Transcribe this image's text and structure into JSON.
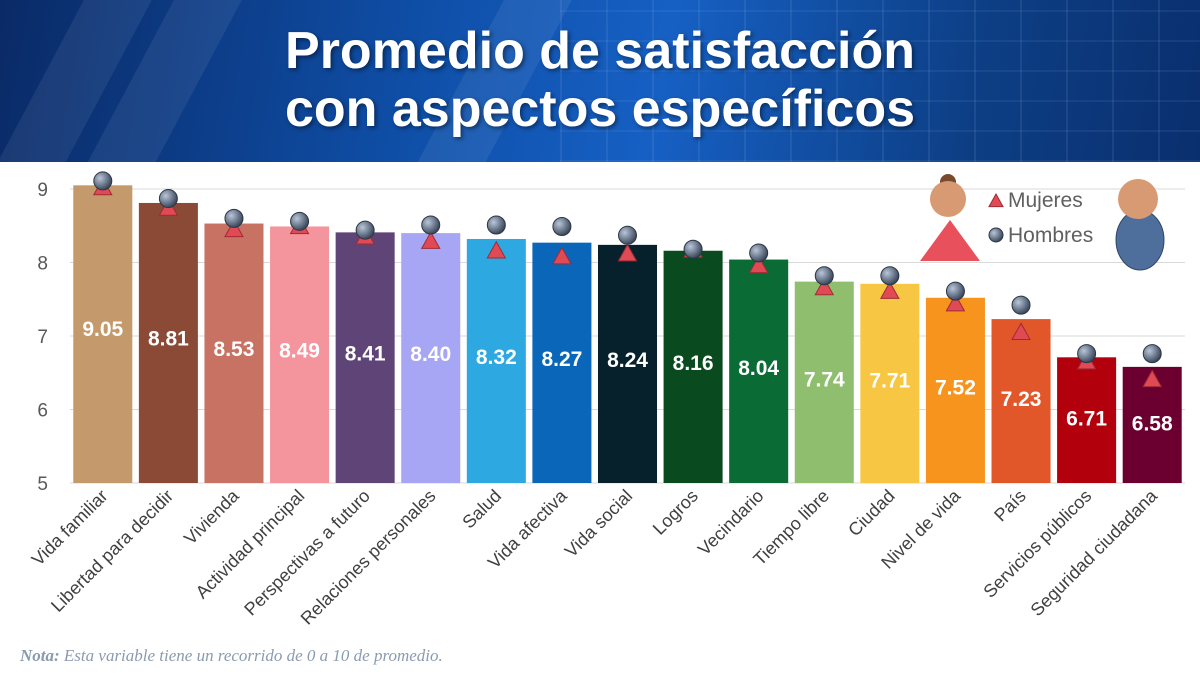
{
  "title_line1": "Promedio de satisfacción",
  "title_line2": "con aspectos específicos",
  "note_label": "Nota:",
  "note_text": " Esta variable tiene un recorrido de 0 a 10 de promedio.",
  "chart_data": {
    "type": "bar",
    "ylim": [
      5,
      9
    ],
    "yticks": [
      5,
      6,
      7,
      8,
      9
    ],
    "grid": true,
    "legend_position": "top-right",
    "categories": [
      "Vida familiar",
      "Libertad para decidir",
      "Vivienda",
      "Actividad principal",
      "Perspectivas a futuro",
      "Relaciones personales",
      "Salud",
      "Vida afectiva",
      "Vida social",
      "Logros",
      "Vecindario",
      "Tiempo libre",
      "Ciudad",
      "Nivel de vida",
      "País",
      "Servicios públicos",
      "Seguridad ciudadana"
    ],
    "values": [
      9.05,
      8.81,
      8.53,
      8.49,
      8.41,
      8.4,
      8.32,
      8.27,
      8.24,
      8.16,
      8.04,
      7.74,
      7.71,
      7.52,
      7.23,
      6.71,
      6.58
    ],
    "value_labels": [
      "9.05",
      "8.81",
      "8.53",
      "8.49",
      "8.41",
      "8.40",
      "8.32",
      "8.27",
      "8.24",
      "8.16",
      "8.04",
      "7.74",
      "7.71",
      "7.52",
      "7.23",
      "6.71",
      "6.58"
    ],
    "bar_colors": [
      "#c49a6c",
      "#8b4a35",
      "#c87263",
      "#f4959d",
      "#5f4577",
      "#a7a6f5",
      "#2ea8e0",
      "#0a66b9",
      "#06202c",
      "#0a4a1f",
      "#0b6b35",
      "#8fbf6e",
      "#f7c744",
      "#f7941d",
      "#e2572a",
      "#b2000d",
      "#6b0030"
    ],
    "series": [
      {
        "name": "Mujeres",
        "marker": "triangle",
        "color": "#e04a55",
        "values": [
          9.02,
          8.74,
          8.45,
          8.49,
          8.35,
          8.29,
          8.16,
          8.08,
          8.12,
          8.17,
          7.96,
          7.66,
          7.61,
          7.44,
          7.05,
          6.65,
          6.41
        ]
      },
      {
        "name": "Hombres",
        "marker": "circle",
        "color": "#5c6b82",
        "values": [
          9.11,
          8.87,
          8.6,
          8.56,
          8.44,
          8.51,
          8.51,
          8.49,
          8.37,
          8.18,
          8.13,
          7.82,
          7.82,
          7.61,
          7.42,
          6.76,
          6.76
        ]
      }
    ]
  }
}
